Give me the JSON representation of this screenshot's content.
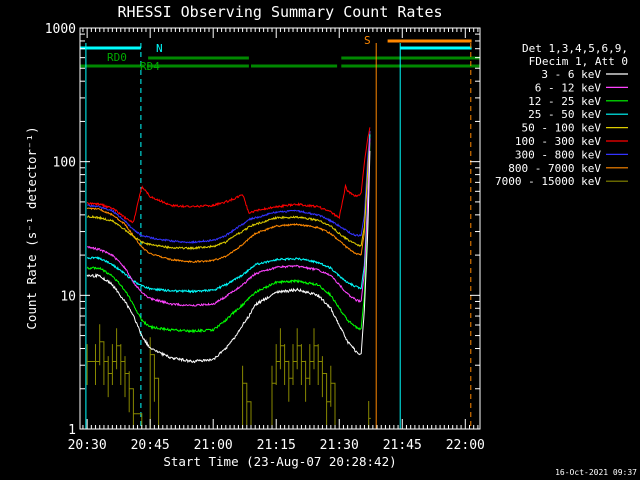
{
  "chart_data": {
    "type": "line",
    "title": "RHESSI Observing Summary Count Rates",
    "xlabel": "Start Time (23-Aug-07 20:28:42)",
    "ylabel": "Count Rate (s⁻¹ detector⁻¹)",
    "yscale": "log",
    "ylim": [
      1,
      1000
    ],
    "xlim_minutes": [
      -1.7,
      93.5
    ],
    "x_ticks": [
      {
        "label": "20:30",
        "minute": 0
      },
      {
        "label": "20:45",
        "minute": 15
      },
      {
        "label": "21:00",
        "minute": 30
      },
      {
        "label": "21:15",
        "minute": 45
      },
      {
        "label": "21:30",
        "minute": 60
      },
      {
        "label": "21:45",
        "minute": 75
      },
      {
        "label": "22:00",
        "minute": 90
      }
    ],
    "y_ticks": [
      {
        "label": "1",
        "value": 1
      },
      {
        "label": "10",
        "value": 10
      },
      {
        "label": "100",
        "value": 100
      },
      {
        "label": "1000",
        "value": 1000
      }
    ],
    "legend_header": [
      "Det 1,3,4,5,6,9,",
      "FDecim 1, Att 0"
    ],
    "legend_placement": "right",
    "series": [
      {
        "name": "3 - 6 keV",
        "color": "#ffffff",
        "noise": 1.3,
        "x": [
          0,
          3,
          6,
          9,
          11,
          13,
          15,
          20,
          25,
          30,
          33,
          35,
          37,
          38.5,
          40,
          45,
          50,
          55,
          58,
          60,
          62,
          64,
          65.2,
          66,
          66.8,
          67.3
        ],
        "y": [
          14,
          14,
          12,
          9,
          7,
          5,
          4,
          3.4,
          3.2,
          3.3,
          4,
          4.8,
          6,
          7,
          8.5,
          10.5,
          11,
          10,
          8,
          6,
          4.5,
          3.8,
          3.6,
          8,
          30,
          120
        ]
      },
      {
        "name": "6 - 12 keV",
        "color": "#ff44ff",
        "noise": 1.0,
        "x": [
          0,
          3,
          6,
          9,
          11,
          13,
          15,
          20,
          25,
          30,
          33,
          35,
          37,
          38.5,
          40,
          45,
          50,
          55,
          58,
          60,
          62,
          64,
          65.2,
          66,
          66.8,
          67.3
        ],
        "y": [
          23,
          22,
          20,
          16,
          12.5,
          10.5,
          9.5,
          8.6,
          8.4,
          8.6,
          9.8,
          10.8,
          12,
          13.2,
          14.5,
          16.2,
          16.5,
          15.5,
          14,
          12,
          10.2,
          9.2,
          9,
          15,
          50,
          150
        ]
      },
      {
        "name": "12 - 25 keV",
        "color": "#00ff00",
        "noise": 1.1,
        "x": [
          0,
          3,
          6,
          9,
          11,
          13,
          15,
          20,
          25,
          30,
          33,
          35,
          37,
          38.5,
          40,
          45,
          50,
          55,
          58,
          60,
          62,
          64,
          65.2,
          66,
          66.8,
          67.3
        ],
        "y": [
          16,
          16,
          14,
          11,
          8.5,
          6.5,
          5.8,
          5.5,
          5.4,
          5.5,
          6.5,
          7.5,
          8.5,
          9.5,
          10.5,
          12.5,
          12.8,
          12,
          10,
          8,
          6.5,
          5.8,
          5.6,
          10,
          40,
          140
        ]
      },
      {
        "name": "25 - 50 keV",
        "color": "#00ffff",
        "noise": 1.0,
        "x": [
          0,
          3,
          6,
          9,
          11,
          13,
          15,
          20,
          25,
          30,
          33,
          35,
          37,
          38.5,
          40,
          45,
          50,
          55,
          58,
          60,
          62,
          64,
          65.2,
          66,
          66.8,
          67.3
        ],
        "y": [
          19,
          19,
          17,
          14.5,
          12.8,
          11.8,
          11.2,
          10.8,
          10.7,
          10.9,
          12,
          13,
          14.2,
          15.5,
          17,
          18.5,
          18.8,
          17.6,
          16,
          14,
          12.5,
          11.6,
          11.2,
          17,
          55,
          160
        ]
      },
      {
        "name": "50 - 100 keV",
        "color": "#ddcc00",
        "noise": 0.9,
        "x": [
          0,
          3,
          6,
          9,
          11,
          13,
          15,
          20,
          25,
          30,
          33,
          35,
          37,
          38.5,
          40,
          45,
          50,
          55,
          58,
          60,
          62,
          64,
          65.2,
          66,
          66.8,
          67.3
        ],
        "y": [
          39,
          38,
          36,
          31,
          27.5,
          25,
          24,
          22.7,
          22.5,
          23.2,
          25,
          28,
          30,
          32.5,
          34,
          38,
          38.5,
          36.5,
          33,
          29,
          26,
          24,
          23.5,
          33,
          90,
          160
        ]
      },
      {
        "name": "100 - 300 keV",
        "color": "#ff0000",
        "noise": 1.0,
        "x": [
          0,
          3,
          6,
          9,
          11,
          13,
          15,
          20,
          25,
          30,
          33,
          35,
          37,
          38.5,
          40,
          45,
          50,
          55,
          58,
          60,
          61.5,
          62,
          64,
          65.2,
          66,
          66.8,
          67.3
        ],
        "y": [
          49,
          48,
          45,
          38,
          35,
          65,
          55,
          47,
          46,
          47,
          50,
          53,
          57,
          41,
          43,
          46,
          48,
          46,
          42,
          38,
          66,
          60,
          55,
          58,
          100,
          150,
          180
        ]
      },
      {
        "name": "300 - 800 keV",
        "color": "#3333ff",
        "noise": 0.9,
        "x": [
          0,
          3,
          6,
          9,
          11,
          13,
          15,
          20,
          25,
          30,
          33,
          35,
          37,
          38.5,
          40,
          45,
          50,
          55,
          58,
          60,
          62,
          64,
          65.2,
          66,
          66.8,
          67.3
        ],
        "y": [
          47,
          46,
          43,
          36,
          31,
          28,
          27,
          25.5,
          25,
          25.8,
          28,
          31,
          34,
          37,
          38,
          42,
          43,
          40,
          36,
          33,
          30,
          28,
          28,
          40,
          110,
          170
        ]
      },
      {
        "name": "800 - 7000 keV",
        "color": "#ff8800",
        "noise": 0.8,
        "x": [
          0,
          3,
          6,
          9,
          11,
          13,
          15,
          20,
          25,
          30,
          33,
          35,
          37,
          38.5,
          40,
          45,
          50,
          55,
          58,
          60,
          62,
          64,
          65.2,
          66,
          66.8,
          67.3
        ],
        "y": [
          45,
          44,
          40,
          34,
          28,
          23,
          20.5,
          18.5,
          17.8,
          18.2,
          19.5,
          21.5,
          24,
          26.5,
          29,
          33,
          34,
          32,
          29,
          25.5,
          22.5,
          20.5,
          20,
          30,
          90,
          170
        ]
      },
      {
        "name": "7000 - 15000 keV",
        "color": "#888800",
        "noise": 0,
        "steps": [
          [
            0,
            3.2
          ],
          [
            2,
            3.2
          ],
          [
            3,
            4.5
          ],
          [
            4,
            3.2
          ],
          [
            5,
            2.6
          ],
          [
            6,
            3.2
          ],
          [
            7,
            4.2
          ],
          [
            8,
            3.2
          ],
          [
            9,
            2.6
          ],
          [
            10,
            2
          ],
          [
            11,
            1.3
          ],
          [
            13,
            1
          ],
          [
            15,
            3.6
          ],
          [
            16,
            2.4
          ],
          [
            17,
            1
          ],
          [
            36,
            1
          ],
          [
            37,
            2.2
          ],
          [
            38,
            1.6
          ],
          [
            39,
            1
          ],
          [
            43,
            1
          ],
          [
            44,
            2.2
          ],
          [
            45,
            3.2
          ],
          [
            46,
            4.2
          ],
          [
            47,
            3.2
          ],
          [
            48,
            2.4
          ],
          [
            49,
            3.2
          ],
          [
            50,
            4.2
          ],
          [
            51,
            3.2
          ],
          [
            52,
            2.4
          ],
          [
            53,
            3.2
          ],
          [
            54,
            4.2
          ],
          [
            55,
            3.2
          ],
          [
            56,
            2.6
          ],
          [
            57,
            1.6
          ],
          [
            58,
            2.2
          ],
          [
            59,
            1
          ],
          [
            66.8,
            1
          ],
          [
            67,
            1.2
          ]
        ]
      }
    ],
    "annotations": [
      {
        "text": "RD0",
        "color": "#00aa00"
      },
      {
        "text": "RD4",
        "color": "#00aa00"
      },
      {
        "text": "N",
        "color": "#00ffff"
      },
      {
        "text": "S",
        "color": "#ff8800"
      }
    ],
    "timestamp": "16-Oct-2021 09:37"
  }
}
